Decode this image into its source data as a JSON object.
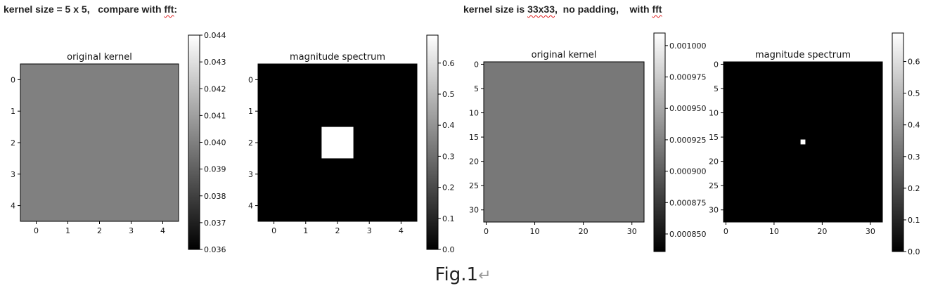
{
  "headings": {
    "left": {
      "before": "kernel size = 5 x 5,   compare with ",
      "mark": "fft",
      "after": ":"
    },
    "right": {
      "before": "kernel size is ",
      "mark": "33x33",
      "middle": ",  no padding,    with ",
      "mark2": "fft",
      "after": ""
    }
  },
  "caption": {
    "text": "Fig.1",
    "mark": "↵"
  },
  "chart_data": [
    {
      "type": "heatmap",
      "title": "original kernel",
      "size": 5,
      "value": 0.04,
      "cmap": "gray",
      "vmin": 0.036,
      "vmax": 0.044,
      "xticks": [
        "0",
        "1",
        "2",
        "3",
        "4"
      ],
      "yticks": [
        "0",
        "1",
        "2",
        "3",
        "4"
      ],
      "colorbar_ticks": [
        "0.036",
        "0.037",
        "0.038",
        "0.039",
        "0.040",
        "0.041",
        "0.042",
        "0.043",
        "0.044"
      ]
    },
    {
      "type": "heatmap",
      "title": "magnitude spectrum",
      "size": 5,
      "background": 0,
      "peak": {
        "row": 2,
        "col": 2,
        "value": 0.69
      },
      "cmap": "gray",
      "vmin": 0,
      "vmax": 0.69,
      "xticks": [
        "0",
        "1",
        "2",
        "3",
        "4"
      ],
      "yticks": [
        "0",
        "1",
        "2",
        "3",
        "4"
      ],
      "colorbar_ticks": [
        "0.0",
        "0.1",
        "0.2",
        "0.3",
        "0.4",
        "0.5",
        "0.6"
      ]
    },
    {
      "type": "heatmap",
      "title": "original kernel",
      "size": 33,
      "value": 0.000918,
      "cmap": "gray",
      "vmin": 0.000836,
      "vmax": 0.00101,
      "xticks": [
        "0",
        "10",
        "20",
        "30"
      ],
      "yticks": [
        "0",
        "5",
        "10",
        "15",
        "20",
        "25",
        "30"
      ],
      "colorbar_ticks": [
        "0.000850",
        "0.000875",
        "0.000900",
        "0.000925",
        "0.000950",
        "0.000975",
        "0.001000"
      ]
    },
    {
      "type": "heatmap",
      "title": "magnitude spectrum",
      "size": 33,
      "background": 0,
      "peak": {
        "row": 16,
        "col": 16,
        "value": 0.69
      },
      "cmap": "gray",
      "vmin": 0,
      "vmax": 0.69,
      "xticks": [
        "0",
        "10",
        "20",
        "30"
      ],
      "yticks": [
        "0",
        "5",
        "10",
        "15",
        "20",
        "25",
        "30"
      ],
      "colorbar_ticks": [
        "0.0",
        "0.1",
        "0.2",
        "0.3",
        "0.4",
        "0.5",
        "0.6"
      ]
    }
  ]
}
